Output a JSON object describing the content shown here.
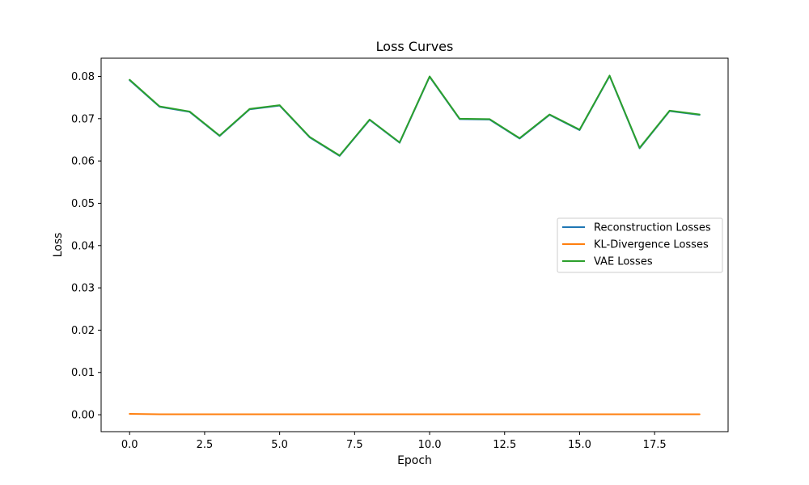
{
  "chart_data": {
    "type": "line",
    "title": "Loss Curves",
    "xlabel": "Epoch",
    "ylabel": "Loss",
    "xlim": [
      -0.95,
      19.95
    ],
    "ylim": [
      -0.004,
      0.0843
    ],
    "xticks": [
      0,
      2.5,
      5,
      7.5,
      10,
      12.5,
      15,
      17.5
    ],
    "xtick_labels": [
      "0.0",
      "2.5",
      "5.0",
      "7.5",
      "10.0",
      "12.5",
      "15.0",
      "17.5"
    ],
    "yticks": [
      0,
      0.01,
      0.02,
      0.03,
      0.04,
      0.05,
      0.06,
      0.07,
      0.08
    ],
    "ytick_labels": [
      "0.00",
      "0.01",
      "0.02",
      "0.03",
      "0.04",
      "0.05",
      "0.06",
      "0.07",
      "0.08"
    ],
    "grid": false,
    "legend_position": "center-right",
    "x": [
      0,
      1,
      2,
      3,
      4,
      5,
      6,
      7,
      8,
      9,
      10,
      11,
      12,
      13,
      14,
      15,
      16,
      17,
      18,
      19
    ],
    "series": [
      {
        "name": "Reconstruction Losses",
        "color": "#1f77b4",
        "values": [
          0.0791,
          0.0728,
          0.0716,
          0.0659,
          0.0722,
          0.0731,
          0.0656,
          0.0612,
          0.0697,
          0.0643,
          0.0799,
          0.0699,
          0.0698,
          0.0653,
          0.0709,
          0.0673,
          0.0801,
          0.063,
          0.0718,
          0.0709
        ]
      },
      {
        "name": "KL-Divergence Losses",
        "color": "#ff7f0e",
        "values": [
          0.0002,
          0.0001,
          0.0001,
          0.0001,
          0.0001,
          0.0001,
          0.0001,
          0.0001,
          0.0001,
          0.0001,
          0.0001,
          0.0001,
          0.0001,
          0.0001,
          0.0001,
          0.0001,
          0.0001,
          0.0001,
          0.0001,
          0.0001
        ]
      },
      {
        "name": "VAE Losses",
        "color": "#2ca02c",
        "values": [
          0.0792,
          0.0729,
          0.0717,
          0.066,
          0.0723,
          0.0732,
          0.0657,
          0.0613,
          0.0698,
          0.0644,
          0.08,
          0.07,
          0.0699,
          0.0654,
          0.071,
          0.0674,
          0.0802,
          0.0631,
          0.0719,
          0.071
        ]
      }
    ]
  }
}
